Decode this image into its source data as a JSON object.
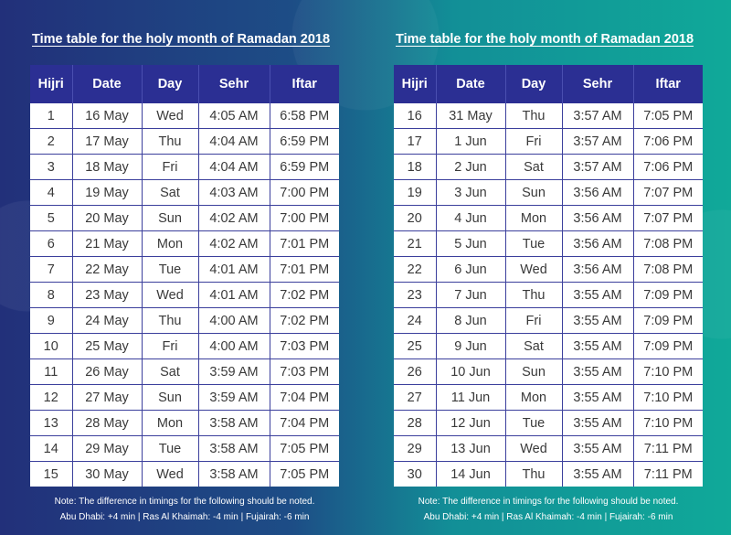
{
  "title": "Time table for the holy month of Ramadan 2018",
  "headers": [
    "Hijri",
    "Date",
    "Day",
    "Sehr",
    "Iftar"
  ],
  "left_rows": [
    [
      "1",
      "16 May",
      "Wed",
      "4:05 AM",
      "6:58 PM"
    ],
    [
      "2",
      "17 May",
      "Thu",
      "4:04 AM",
      "6:59 PM"
    ],
    [
      "3",
      "18 May",
      "Fri",
      "4:04 AM",
      "6:59 PM"
    ],
    [
      "4",
      "19 May",
      "Sat",
      "4:03 AM",
      "7:00 PM"
    ],
    [
      "5",
      "20 May",
      "Sun",
      "4:02 AM",
      "7:00 PM"
    ],
    [
      "6",
      "21 May",
      "Mon",
      "4:02 AM",
      "7:01 PM"
    ],
    [
      "7",
      "22 May",
      "Tue",
      "4:01 AM",
      "7:01 PM"
    ],
    [
      "8",
      "23 May",
      "Wed",
      "4:01 AM",
      "7:02 PM"
    ],
    [
      "9",
      "24 May",
      "Thu",
      "4:00 AM",
      "7:02 PM"
    ],
    [
      "10",
      "25 May",
      "Fri",
      "4:00 AM",
      "7:03 PM"
    ],
    [
      "11",
      "26 May",
      "Sat",
      "3:59 AM",
      "7:03 PM"
    ],
    [
      "12",
      "27 May",
      "Sun",
      "3:59 AM",
      "7:04 PM"
    ],
    [
      "13",
      "28 May",
      "Mon",
      "3:58 AM",
      "7:04 PM"
    ],
    [
      "14",
      "29 May",
      "Tue",
      "3:58 AM",
      "7:05 PM"
    ],
    [
      "15",
      "30 May",
      "Wed",
      "3:58 AM",
      "7:05 PM"
    ]
  ],
  "right_rows": [
    [
      "16",
      "31 May",
      "Thu",
      "3:57 AM",
      "7:05 PM"
    ],
    [
      "17",
      "1 Jun",
      "Fri",
      "3:57 AM",
      "7:06 PM"
    ],
    [
      "18",
      "2 Jun",
      "Sat",
      "3:57 AM",
      "7:06 PM"
    ],
    [
      "19",
      "3 Jun",
      "Sun",
      "3:56 AM",
      "7:07 PM"
    ],
    [
      "20",
      "4 Jun",
      "Mon",
      "3:56 AM",
      "7:07 PM"
    ],
    [
      "21",
      "5 Jun",
      "Tue",
      "3:56 AM",
      "7:08 PM"
    ],
    [
      "22",
      "6 Jun",
      "Wed",
      "3:56 AM",
      "7:08 PM"
    ],
    [
      "23",
      "7 Jun",
      "Thu",
      "3:55 AM",
      "7:09 PM"
    ],
    [
      "24",
      "8 Jun",
      "Fri",
      "3:55 AM",
      "7:09 PM"
    ],
    [
      "25",
      "9 Jun",
      "Sat",
      "3:55 AM",
      "7:09 PM"
    ],
    [
      "26",
      "10 Jun",
      "Sun",
      "3:55 AM",
      "7:10 PM"
    ],
    [
      "27",
      "11 Jun",
      "Mon",
      "3:55 AM",
      "7:10 PM"
    ],
    [
      "28",
      "12 Jun",
      "Tue",
      "3:55 AM",
      "7:10 PM"
    ],
    [
      "29",
      "13 Jun",
      "Wed",
      "3:55 AM",
      "7:11 PM"
    ],
    [
      "30",
      "14 Jun",
      "Thu",
      "3:55 AM",
      "7:11 PM"
    ]
  ],
  "note_line1": "Note: The difference in timings for the following should be noted.",
  "note_line2": "Abu Dhabi: +4 min | Ras Al Khaimah: -4 min | Fujairah: -6 min",
  "colors": {
    "header_bg": "#2b2f93",
    "grid_line": "#3b3f9c",
    "bg_left": "#22307a",
    "bg_right": "#10a999"
  }
}
